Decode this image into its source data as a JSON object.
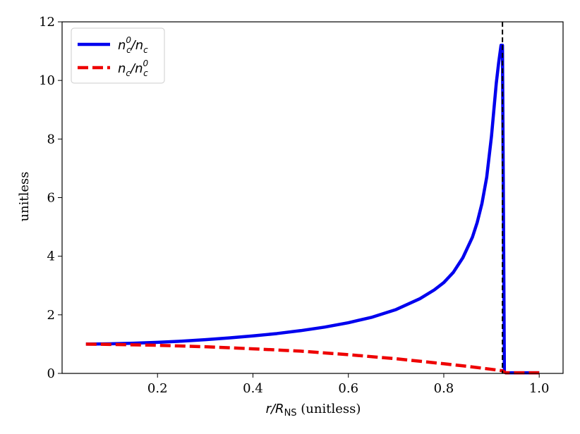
{
  "chart_data": {
    "type": "line",
    "title": "",
    "xlabel_main": "r/R",
    "xlabel_sub": "NS",
    "xlabel_unit": " (unitless)",
    "ylabel": "unitless",
    "xlim": [
      0.0,
      1.05
    ],
    "ylim": [
      0,
      12
    ],
    "xticks": [
      0.2,
      0.4,
      0.6,
      0.8,
      1.0
    ],
    "xtick_labels": [
      "0.2",
      "0.4",
      "0.6",
      "0.8",
      "1.0"
    ],
    "yticks": [
      0,
      2,
      4,
      6,
      8,
      10,
      12
    ],
    "ytick_labels": [
      "0",
      "2",
      "4",
      "6",
      "8",
      "10",
      "12"
    ],
    "vline_x": 0.923,
    "grid": false,
    "legend_position": "top-left",
    "series": [
      {
        "name": "n_c^0/n_c",
        "legend_label": "nc0/nc",
        "color": "#0000ee",
        "style": "solid",
        "x": [
          0.05,
          0.1,
          0.15,
          0.2,
          0.25,
          0.3,
          0.35,
          0.4,
          0.45,
          0.5,
          0.55,
          0.6,
          0.65,
          0.7,
          0.75,
          0.78,
          0.8,
          0.82,
          0.84,
          0.86,
          0.87,
          0.88,
          0.89,
          0.9,
          0.905,
          0.91,
          0.915,
          0.92,
          0.923,
          0.927,
          0.93,
          1.0
        ],
        "y": [
          1.0,
          1.01,
          1.03,
          1.06,
          1.1,
          1.15,
          1.21,
          1.28,
          1.36,
          1.46,
          1.58,
          1.73,
          1.92,
          2.18,
          2.55,
          2.85,
          3.1,
          3.45,
          3.95,
          4.65,
          5.15,
          5.8,
          6.7,
          8.1,
          9.0,
          9.9,
          10.6,
          11.2,
          11.2,
          0.05,
          0.02,
          0.02
        ]
      },
      {
        "name": "n_c/n_c^0",
        "legend_label": "nc/nc0",
        "color": "#ee0000",
        "style": "dashed",
        "x": [
          0.05,
          0.1,
          0.2,
          0.3,
          0.4,
          0.5,
          0.6,
          0.7,
          0.8,
          0.85,
          0.9,
          0.923,
          0.93,
          1.0
        ],
        "y": [
          1.0,
          0.99,
          0.96,
          0.91,
          0.84,
          0.76,
          0.64,
          0.5,
          0.33,
          0.24,
          0.14,
          0.09,
          0.02,
          0.02
        ]
      }
    ]
  }
}
